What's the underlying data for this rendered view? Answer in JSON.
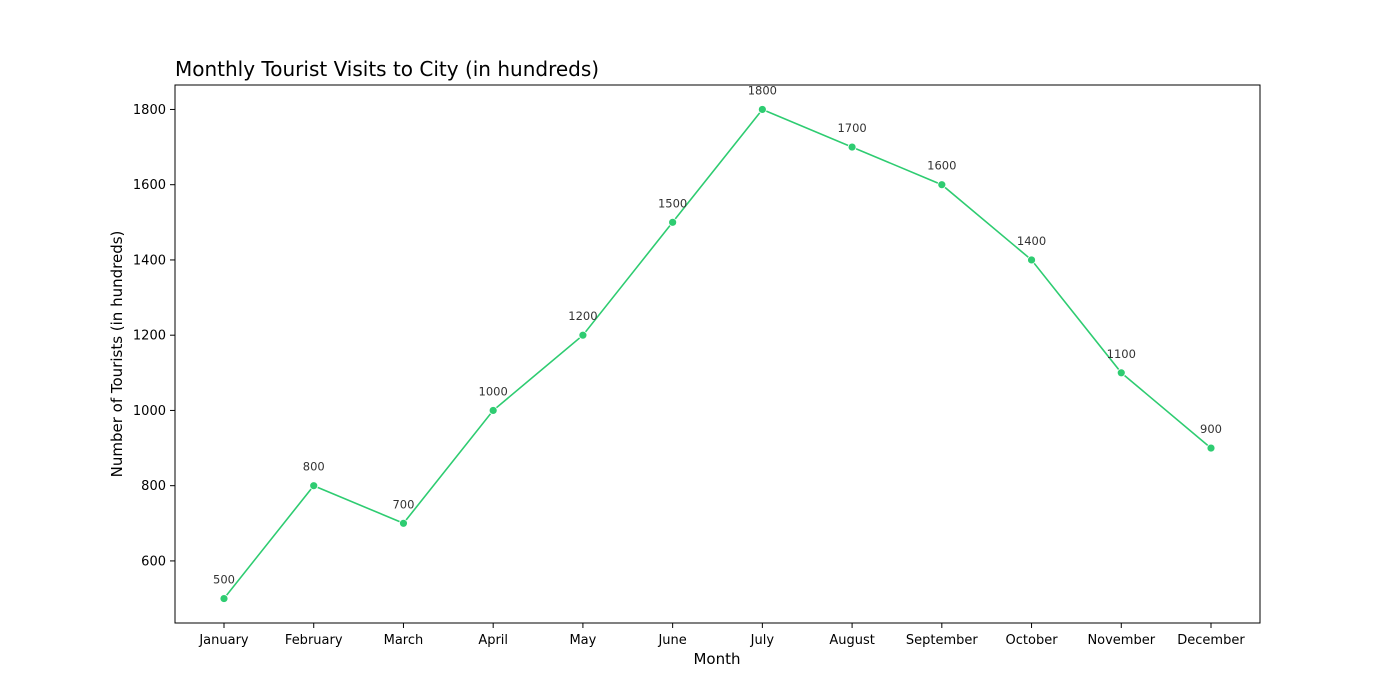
{
  "chart_data": {
    "type": "line",
    "title": "Monthly Tourist Visits to City (in hundreds)",
    "xlabel": "Month",
    "ylabel": "Number of Tourists (in hundreds)",
    "categories": [
      "January",
      "February",
      "March",
      "April",
      "May",
      "June",
      "July",
      "August",
      "September",
      "October",
      "November",
      "December"
    ],
    "series": [
      {
        "values": [
          500,
          800,
          700,
          1000,
          1200,
          1500,
          1800,
          1700,
          1600,
          1400,
          1100,
          900
        ],
        "color": "#2ecc71"
      }
    ],
    "yticks": [
      600,
      800,
      1000,
      1200,
      1400,
      1600,
      1800
    ],
    "ylim": [
      435,
      1865
    ],
    "grid": false,
    "data_labels": true
  }
}
